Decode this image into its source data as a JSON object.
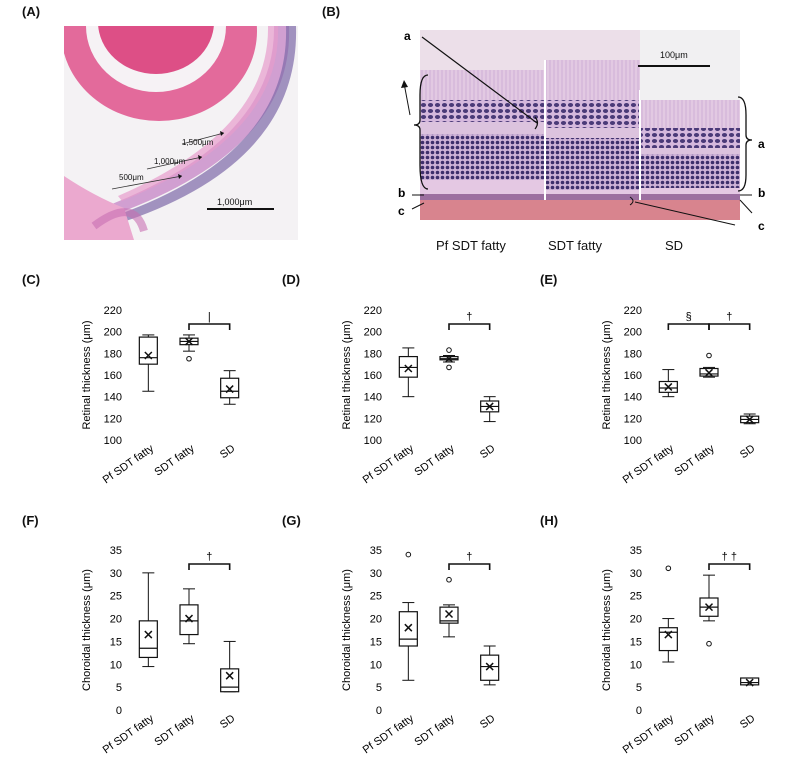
{
  "panel_labels": [
    "(A)",
    "(B)",
    "(C)",
    "(D)",
    "(E)",
    "(F)",
    "(G)",
    "(H)"
  ],
  "micrograph_a": {
    "scale_bar": "1,000μm",
    "distance_labels": [
      "500μm",
      "1,000μm",
      "1,500μm"
    ]
  },
  "micrograph_b": {
    "scale_bar": "100μm",
    "layer_labels": [
      "a",
      "b",
      "c",
      "a",
      "b",
      "c"
    ],
    "column_labels": [
      "Pf SDT fatty",
      "SDT fatty",
      "SD"
    ]
  },
  "colors": {
    "he_pink": "#e88fc0",
    "he_lens": "#e0457a",
    "nuclei": "#4a3a78",
    "box_stroke": "#111111",
    "bracket": "#111111"
  },
  "chart_data": [
    {
      "panel": "(C)",
      "type": "box",
      "categories": [
        "Pf SDT fatty",
        "SDT fatty",
        "SD"
      ],
      "ylabel": "Retinal thickness (μm)",
      "ylim": [
        100,
        220
      ],
      "yticks": [
        100,
        120,
        140,
        160,
        180,
        200,
        220
      ],
      "series": [
        {
          "min": 145,
          "q1": 170,
          "median": 176,
          "q3": 195,
          "max": 197,
          "mean": 178,
          "outliers": []
        },
        {
          "min": 182,
          "q1": 188,
          "median": 191,
          "q3": 194,
          "max": 197,
          "mean": 191,
          "outliers": [
            175
          ]
        },
        {
          "min": 133,
          "q1": 139,
          "median": 145,
          "q3": 157,
          "max": 164,
          "mean": 147,
          "outliers": []
        }
      ],
      "significance": [
        {
          "from": 1,
          "to": 2,
          "mark": "|"
        }
      ]
    },
    {
      "panel": "(D)",
      "type": "box",
      "categories": [
        "Pf SDT fatty",
        "SDT fatty",
        "SD"
      ],
      "ylabel": "Retinal thickness (μm)",
      "ylim": [
        100,
        220
      ],
      "yticks": [
        100,
        120,
        140,
        160,
        180,
        200,
        220
      ],
      "series": [
        {
          "min": 140,
          "q1": 158,
          "median": 167,
          "q3": 177,
          "max": 185,
          "mean": 166,
          "outliers": []
        },
        {
          "min": 172,
          "q1": 174,
          "median": 175,
          "q3": 177,
          "max": 178,
          "mean": 175,
          "outliers": [
            183,
            167
          ]
        },
        {
          "min": 117,
          "q1": 126,
          "median": 131,
          "q3": 136,
          "max": 140,
          "mean": 131,
          "outliers": []
        }
      ],
      "significance": [
        {
          "from": 1,
          "to": 2,
          "mark": "†"
        }
      ]
    },
    {
      "panel": "(E)",
      "type": "box",
      "categories": [
        "Pf SDT fatty",
        "SDT fatty",
        "SD"
      ],
      "ylabel": "Retinal thickness (μm)",
      "ylim": [
        100,
        220
      ],
      "yticks": [
        100,
        120,
        140,
        160,
        180,
        200,
        220
      ],
      "series": [
        {
          "min": 140,
          "q1": 144,
          "median": 148,
          "q3": 154,
          "max": 165,
          "mean": 149,
          "outliers": []
        },
        {
          "min": 158,
          "q1": 159,
          "median": 161,
          "q3": 166,
          "max": 167,
          "mean": 162,
          "outliers": [
            178
          ]
        },
        {
          "min": 115,
          "q1": 116,
          "median": 119,
          "q3": 122,
          "max": 124,
          "mean": 119,
          "outliers": []
        }
      ],
      "significance": [
        {
          "from": 0,
          "to": 1,
          "mark": "§"
        },
        {
          "from": 1,
          "to": 2,
          "mark": "†"
        }
      ]
    },
    {
      "panel": "(F)",
      "type": "box",
      "categories": [
        "Pf SDT fatty",
        "SDT fatty",
        "SD"
      ],
      "ylabel": "Choroidal thickness (μm)",
      "ylim": [
        0,
        35
      ],
      "yticks": [
        0,
        5,
        10,
        15,
        20,
        25,
        30,
        35
      ],
      "series": [
        {
          "min": 9.5,
          "q1": 11.5,
          "median": 13.5,
          "q3": 19.5,
          "max": 30,
          "mean": 16.5,
          "outliers": []
        },
        {
          "min": 14.5,
          "q1": 16.5,
          "median": 19.5,
          "q3": 23,
          "max": 26.5,
          "mean": 20,
          "outliers": []
        },
        {
          "min": 4,
          "q1": 4,
          "median": 5,
          "q3": 9,
          "max": 15,
          "mean": 7.5,
          "outliers": []
        }
      ],
      "significance": [
        {
          "from": 1,
          "to": 2,
          "mark": "†"
        }
      ]
    },
    {
      "panel": "(G)",
      "type": "box",
      "categories": [
        "Pf SDT fatty",
        "SDT fatty",
        "SD"
      ],
      "ylabel": "Choroidal thickness (μm)",
      "ylim": [
        0,
        35
      ],
      "yticks": [
        0,
        5,
        10,
        15,
        20,
        25,
        30,
        35
      ],
      "series": [
        {
          "min": 6.5,
          "q1": 14,
          "median": 15.5,
          "q3": 21.5,
          "max": 23.5,
          "mean": 18,
          "outliers": [
            34
          ]
        },
        {
          "min": 16,
          "q1": 19,
          "median": 19.5,
          "q3": 22.5,
          "max": 23,
          "mean": 21,
          "outliers": [
            28.5
          ]
        },
        {
          "min": 5.5,
          "q1": 6.5,
          "median": 9.5,
          "q3": 12,
          "max": 14,
          "mean": 9.5,
          "outliers": []
        }
      ],
      "significance": [
        {
          "from": 1,
          "to": 2,
          "mark": "†"
        }
      ]
    },
    {
      "panel": "(H)",
      "type": "box",
      "categories": [
        "Pf SDT fatty",
        "SDT fatty",
        "SD"
      ],
      "ylabel": "Choroidal thickness (μm)",
      "ylim": [
        0,
        35
      ],
      "yticks": [
        0,
        5,
        10,
        15,
        20,
        25,
        30,
        35
      ],
      "series": [
        {
          "min": 10.5,
          "q1": 13,
          "median": 17,
          "q3": 18,
          "max": 20,
          "mean": 16.5,
          "outliers": [
            31
          ]
        },
        {
          "min": 19.5,
          "q1": 20.5,
          "median": 22.5,
          "q3": 24.5,
          "max": 29.5,
          "mean": 22.5,
          "outliers": [
            14.5
          ]
        },
        {
          "min": 5.5,
          "q1": 5.5,
          "median": 6,
          "q3": 7,
          "max": 7,
          "mean": 6,
          "outliers": []
        }
      ],
      "significance": [
        {
          "from": 1,
          "to": 2,
          "mark": "† †"
        }
      ]
    }
  ]
}
